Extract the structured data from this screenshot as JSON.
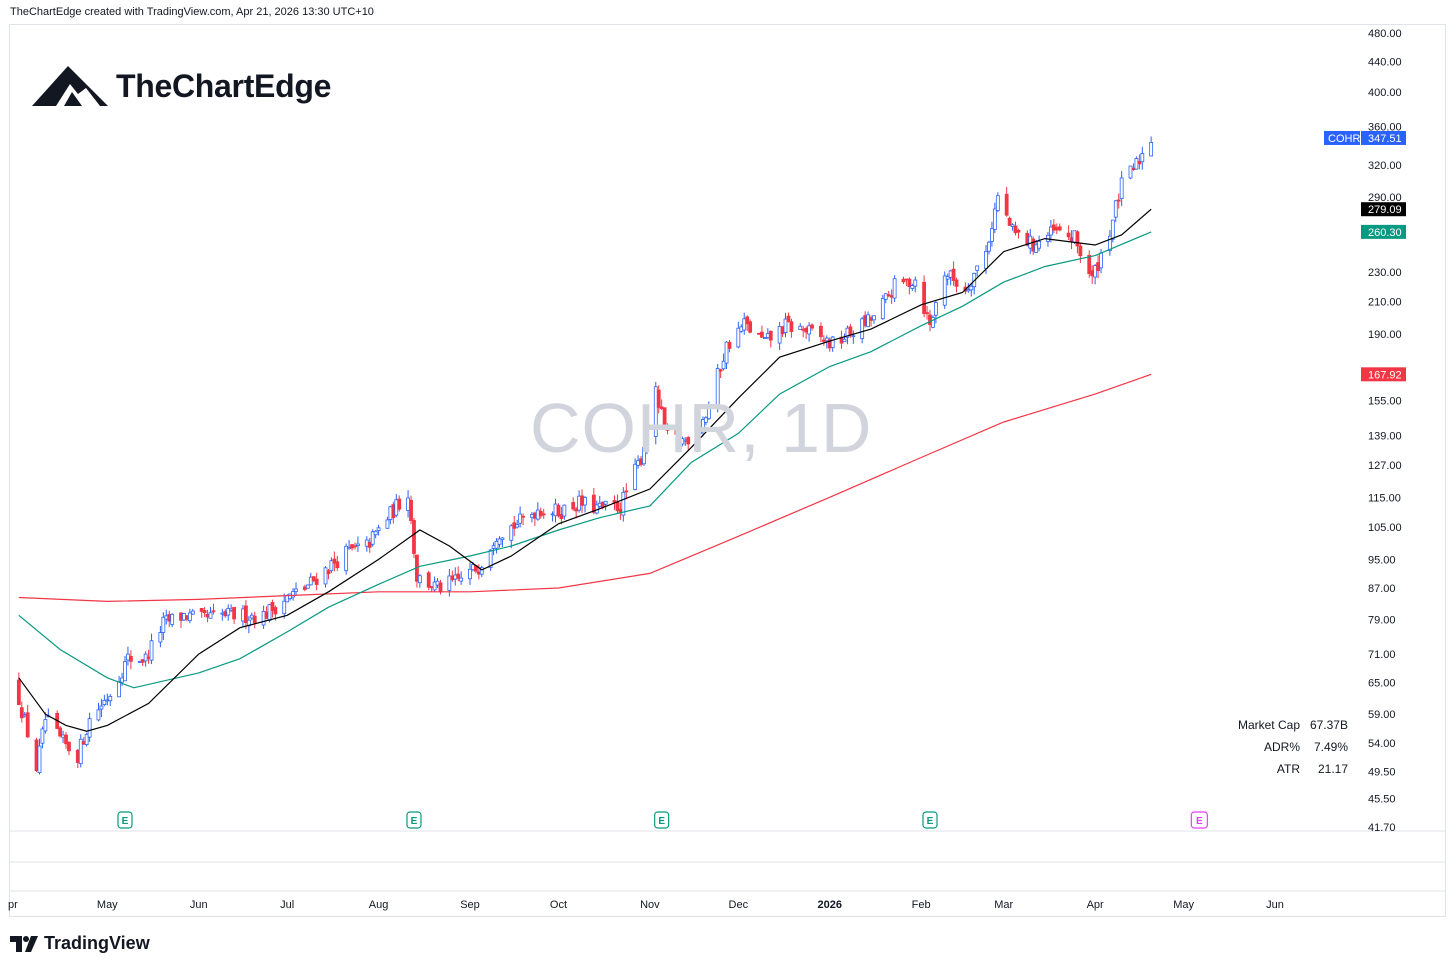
{
  "header": {
    "attribution": "TheChartEdge created with TradingView.com, Apr 21, 2026 13:30 UTC+10"
  },
  "brand": {
    "name": "TheChartEdge",
    "icon": "mountain-logo-icon"
  },
  "footer": {
    "name": "TradingView",
    "icon": "tradingview-logo-icon"
  },
  "watermark": "COHR, 1D",
  "stats": [
    {
      "label": "Market Cap",
      "value": "67.37B"
    },
    {
      "label": "ADR%",
      "value": "7.49%"
    },
    {
      "label": "ATR",
      "value": "21.17"
    }
  ],
  "chart_data": {
    "type": "candlestick",
    "symbol": "COHR",
    "interval": "1D",
    "y_scale": "log",
    "ylim": [
      41.7,
      480
    ],
    "y_ticks": [
      "480.00",
      "440.00",
      "400.00",
      "360.00",
      "320.00",
      "290.00",
      "230.00",
      "210.00",
      "190.00",
      "155.00",
      "139.00",
      "127.00",
      "115.00",
      "105.00",
      "95.00",
      "87.00",
      "79.00",
      "71.00",
      "65.00",
      "59.00",
      "54.00",
      "49.50",
      "45.50",
      "41.70"
    ],
    "x_labels": [
      "pr",
      "May",
      "Jun",
      "Jul",
      "Aug",
      "Sep",
      "Oct",
      "Nov",
      "Dec",
      "2026",
      "Feb",
      "Mar",
      "Apr",
      "May",
      "Jun"
    ],
    "x_label_dates": [
      "2025-04-01",
      "2025-05-01",
      "2025-06-01",
      "2025-07-01",
      "2025-08-01",
      "2025-09-01",
      "2025-10-01",
      "2025-11-01",
      "2025-12-01",
      "2026-01-01",
      "2026-02-01",
      "2026-03-01",
      "2026-04-01",
      "2026-05-01",
      "2026-06-01"
    ],
    "x_range": [
      "2025-03-29",
      "2026-06-30"
    ],
    "bold_labels": [
      "2026"
    ],
    "colors": {
      "up": "#2962ff",
      "down": "#f23645",
      "ma_short": "#000000",
      "ma_mid": "#089981",
      "ma_long": "#f23645",
      "symbol_tag": "#2962ff"
    },
    "price_tags": [
      {
        "label": "COHR",
        "value": "347.51",
        "color": "#2962ff"
      },
      {
        "value": "279.09",
        "color": "#000000"
      },
      {
        "value": "260.30",
        "color": "#089981"
      },
      {
        "value": "167.92",
        "color": "#f23645"
      }
    ],
    "earnings_markers": {
      "label": "E",
      "dates": [
        "2025-05-07",
        "2025-08-13",
        "2025-11-05",
        "2026-02-04"
      ],
      "upcoming": "2026-05-06"
    },
    "price_points": [
      [
        "2025-04-01",
        62
      ],
      [
        "2025-04-07",
        50
      ],
      [
        "2025-04-10",
        58
      ],
      [
        "2025-04-16",
        54
      ],
      [
        "2025-04-21",
        52
      ],
      [
        "2025-04-25",
        58
      ],
      [
        "2025-05-02",
        63
      ],
      [
        "2025-05-08",
        70
      ],
      [
        "2025-05-14",
        70
      ],
      [
        "2025-05-20",
        78
      ],
      [
        "2025-05-27",
        80
      ],
      [
        "2025-06-02",
        79
      ],
      [
        "2025-06-09",
        80
      ],
      [
        "2025-06-16",
        80
      ],
      [
        "2025-06-23",
        80
      ],
      [
        "2025-06-30",
        84
      ],
      [
        "2025-07-07",
        87
      ],
      [
        "2025-07-14",
        92
      ],
      [
        "2025-07-21",
        97
      ],
      [
        "2025-07-28",
        99
      ],
      [
        "2025-08-04",
        108
      ],
      [
        "2025-08-11",
        117
      ],
      [
        "2025-08-14",
        90
      ],
      [
        "2025-08-21",
        87
      ],
      [
        "2025-08-28",
        89
      ],
      [
        "2025-09-04",
        93
      ],
      [
        "2025-09-10",
        103
      ],
      [
        "2025-09-17",
        106
      ],
      [
        "2025-09-24",
        111
      ],
      [
        "2025-10-01",
        110
      ],
      [
        "2025-10-08",
        113
      ],
      [
        "2025-10-15",
        111
      ],
      [
        "2025-10-22",
        112
      ],
      [
        "2025-10-29",
        130
      ],
      [
        "2025-11-03",
        158
      ],
      [
        "2025-11-07",
        138
      ],
      [
        "2025-11-13",
        137
      ],
      [
        "2025-11-20",
        148
      ],
      [
        "2025-11-27",
        183
      ],
      [
        "2025-12-03",
        196
      ],
      [
        "2025-12-10",
        185
      ],
      [
        "2025-12-17",
        195
      ],
      [
        "2025-12-24",
        192
      ],
      [
        "2026-01-02",
        184
      ],
      [
        "2026-01-09",
        192
      ],
      [
        "2026-01-16",
        200
      ],
      [
        "2026-01-23",
        220
      ],
      [
        "2026-01-30",
        225
      ],
      [
        "2026-02-04",
        195
      ],
      [
        "2026-02-09",
        230
      ],
      [
        "2026-02-16",
        218
      ],
      [
        "2026-02-23",
        245
      ],
      [
        "2026-02-27",
        290
      ],
      [
        "2026-03-04",
        260
      ],
      [
        "2026-03-11",
        250
      ],
      [
        "2026-03-18",
        260
      ],
      [
        "2026-03-25",
        255
      ],
      [
        "2026-03-31",
        225
      ],
      [
        "2026-04-06",
        262
      ],
      [
        "2026-04-10",
        300
      ],
      [
        "2026-04-15",
        320
      ],
      [
        "2026-04-20",
        347.51
      ]
    ],
    "ma_short": [
      [
        "2025-04-01",
        66
      ],
      [
        "2025-04-10",
        59
      ],
      [
        "2025-04-17",
        57
      ],
      [
        "2025-04-24",
        56
      ],
      [
        "2025-05-01",
        57
      ],
      [
        "2025-05-15",
        61
      ],
      [
        "2025-06-01",
        71
      ],
      [
        "2025-06-15",
        77
      ],
      [
        "2025-07-01",
        80
      ],
      [
        "2025-07-15",
        86
      ],
      [
        "2025-08-01",
        95
      ],
      [
        "2025-08-15",
        104
      ],
      [
        "2025-08-25",
        99
      ],
      [
        "2025-09-05",
        92
      ],
      [
        "2025-09-15",
        96
      ],
      [
        "2025-10-01",
        106
      ],
      [
        "2025-10-15",
        111
      ],
      [
        "2025-11-01",
        118
      ],
      [
        "2025-11-15",
        134
      ],
      [
        "2025-12-01",
        156
      ],
      [
        "2025-12-15",
        177
      ],
      [
        "2026-01-01",
        186
      ],
      [
        "2026-01-15",
        193
      ],
      [
        "2026-02-01",
        208
      ],
      [
        "2026-02-15",
        216
      ],
      [
        "2026-03-01",
        245
      ],
      [
        "2026-03-15",
        255
      ],
      [
        "2026-04-01",
        250
      ],
      [
        "2026-04-10",
        258
      ],
      [
        "2026-04-20",
        279.09
      ]
    ],
    "ma_mid": [
      [
        "2025-04-01",
        80
      ],
      [
        "2025-04-15",
        72
      ],
      [
        "2025-05-01",
        66
      ],
      [
        "2025-05-10",
        64
      ],
      [
        "2025-06-01",
        67
      ],
      [
        "2025-06-15",
        70
      ],
      [
        "2025-07-01",
        76
      ],
      [
        "2025-07-15",
        82
      ],
      [
        "2025-08-01",
        88
      ],
      [
        "2025-08-15",
        93
      ],
      [
        "2025-09-01",
        96
      ],
      [
        "2025-09-15",
        99
      ],
      [
        "2025-10-01",
        104
      ],
      [
        "2025-10-15",
        108
      ],
      [
        "2025-11-01",
        112
      ],
      [
        "2025-11-15",
        128
      ],
      [
        "2025-12-01",
        140
      ],
      [
        "2025-12-15",
        158
      ],
      [
        "2026-01-01",
        172
      ],
      [
        "2026-01-15",
        180
      ],
      [
        "2026-02-01",
        195
      ],
      [
        "2026-02-15",
        207
      ],
      [
        "2026-03-01",
        223
      ],
      [
        "2026-03-15",
        234
      ],
      [
        "2026-04-01",
        242
      ],
      [
        "2026-04-20",
        260.3
      ]
    ],
    "ma_long": [
      [
        "2025-04-01",
        84.5
      ],
      [
        "2025-05-01",
        83.5
      ],
      [
        "2025-06-01",
        84
      ],
      [
        "2025-07-01",
        85
      ],
      [
        "2025-08-01",
        86
      ],
      [
        "2025-09-01",
        86
      ],
      [
        "2025-10-01",
        87
      ],
      [
        "2025-11-01",
        91
      ],
      [
        "2025-12-01",
        102
      ],
      [
        "2026-01-01",
        115
      ],
      [
        "2026-02-01",
        130
      ],
      [
        "2026-03-01",
        145
      ],
      [
        "2026-04-01",
        158
      ],
      [
        "2026-04-20",
        167.92
      ]
    ]
  }
}
